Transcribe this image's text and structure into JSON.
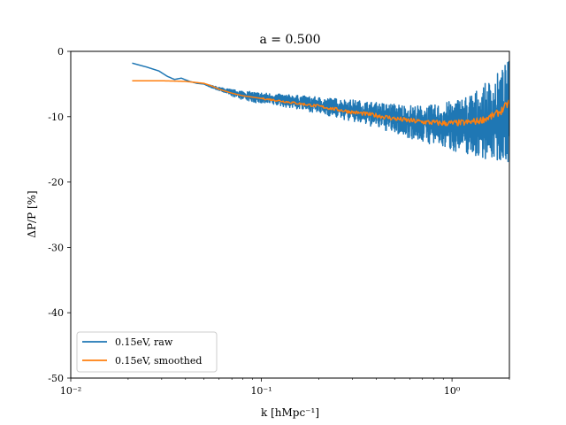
{
  "chart_data": {
    "type": "line",
    "title": "a = 0.500",
    "xlabel": "k [hMpc⁻¹]",
    "ylabel": "ΔP/P [%]",
    "xscale": "log",
    "xlim": [
      0.01,
      2.0
    ],
    "ylim": [
      -50,
      0
    ],
    "x_tick_labels": [
      {
        "value": 0.01,
        "label": "10⁻²"
      },
      {
        "value": 0.1,
        "label": "10⁻¹"
      },
      {
        "value": 1,
        "label": "10⁰"
      }
    ],
    "y_ticks": [
      0,
      -10,
      -20,
      -30,
      -40,
      -50
    ],
    "y_tick_labels": [
      "0",
      "-10",
      "-20",
      "-30",
      "-40",
      "-50"
    ],
    "grid": false,
    "legend_position": "lower-left",
    "series": [
      {
        "name": "0.15eV, raw",
        "color": "#1f77b4",
        "x": [
          0.021,
          0.025,
          0.029,
          0.032,
          0.035,
          0.038,
          0.042,
          0.046,
          0.05,
          0.055,
          0.06,
          0.066,
          0.072,
          0.08,
          0.09,
          0.1,
          0.12,
          0.15,
          0.2,
          0.25,
          0.3,
          0.4,
          0.5,
          0.6,
          0.7,
          0.8,
          0.9,
          1.0,
          1.2,
          1.4,
          1.6,
          1.8,
          2.0
        ],
        "y": [
          -1.8,
          -2.4,
          -3.0,
          -3.8,
          -4.3,
          -4.1,
          -4.6,
          -4.9,
          -5.0,
          -5.5,
          -5.8,
          -6.1,
          -6.4,
          -6.7,
          -7.0,
          -7.1,
          -7.3,
          -7.6,
          -8.2,
          -8.6,
          -9.0,
          -9.6,
          -10.2,
          -10.6,
          -10.9,
          -11.1,
          -11.2,
          -11.3,
          -11.4,
          -11.3,
          -11.0,
          -10.6,
          -9.6
        ],
        "y_low": [
          -1.8,
          -2.4,
          -3.0,
          -3.8,
          -4.3,
          -4.1,
          -4.6,
          -4.9,
          -5.0,
          -5.6,
          -6.0,
          -6.5,
          -7.0,
          -7.4,
          -7.8,
          -8.0,
          -8.3,
          -8.8,
          -9.5,
          -10.2,
          -10.8,
          -11.7,
          -12.6,
          -13.3,
          -13.9,
          -14.4,
          -14.8,
          -15.2,
          -15.8,
          -16.3,
          -16.6,
          -16.9,
          -17.0
        ],
        "y_high": [
          -1.8,
          -2.4,
          -3.0,
          -3.8,
          -4.3,
          -4.1,
          -4.6,
          -4.9,
          -5.0,
          -5.2,
          -5.5,
          -5.7,
          -5.9,
          -6.0,
          -6.2,
          -6.3,
          -6.5,
          -6.7,
          -7.0,
          -7.2,
          -7.4,
          -7.8,
          -8.0,
          -8.2,
          -8.3,
          -8.2,
          -7.9,
          -7.5,
          -6.6,
          -5.6,
          -4.2,
          -2.8,
          -1.2
        ]
      },
      {
        "name": "0.15eV, smoothed",
        "color": "#ff7f0e",
        "x": [
          0.021,
          0.025,
          0.03,
          0.035,
          0.04,
          0.045,
          0.05,
          0.055,
          0.06,
          0.07,
          0.08,
          0.1,
          0.12,
          0.15,
          0.2,
          0.25,
          0.3,
          0.4,
          0.5,
          0.6,
          0.7,
          0.8,
          0.9,
          1.0,
          1.2,
          1.4,
          1.6,
          1.8,
          2.0
        ],
        "y": [
          -4.5,
          -4.5,
          -4.5,
          -4.55,
          -4.6,
          -4.75,
          -4.9,
          -5.3,
          -5.8,
          -6.4,
          -6.8,
          -7.2,
          -7.5,
          -7.9,
          -8.4,
          -8.9,
          -9.3,
          -9.8,
          -10.3,
          -10.6,
          -10.8,
          -10.9,
          -11.0,
          -11.0,
          -10.9,
          -10.6,
          -10.0,
          -9.2,
          -7.8
        ]
      }
    ]
  }
}
